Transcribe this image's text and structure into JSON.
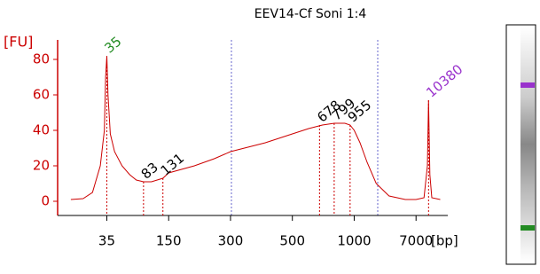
{
  "chart_data": {
    "type": "line",
    "title": "EEV14-Cf Soni 1:4",
    "ylabel": "[FU]",
    "xlabel": "[bp]",
    "log_x": true,
    "xlim": [
      11,
      19000
    ],
    "xticks": [
      35,
      150,
      300,
      500,
      1000,
      7000
    ],
    "ylim": [
      -8,
      91
    ],
    "yticks": [
      0,
      20,
      40,
      60,
      80
    ],
    "axis_color": "#cc0000",
    "series": [
      {
        "color": "#cc0000",
        "x": [
          15,
          20,
          25,
          30,
          33,
          34,
          35,
          36,
          38,
          42,
          50,
          60,
          70,
          83,
          100,
          131,
          150,
          200,
          250,
          300,
          400,
          500,
          600,
          700,
          800,
          900,
          955,
          1000,
          1200,
          1500,
          2000,
          3000,
          5000,
          7000,
          9000,
          10000,
          10380,
          10800,
          11500,
          15000
        ],
        "values": [
          1,
          1.5,
          5,
          20,
          40,
          70,
          82,
          60,
          38,
          28,
          20,
          15,
          12,
          11,
          11,
          13,
          16,
          20,
          24,
          28,
          33,
          38,
          41,
          43,
          44,
          44,
          43,
          40,
          33,
          22,
          10,
          3,
          1,
          1,
          2,
          20,
          57,
          15,
          2,
          1
        ]
      }
    ],
    "peaks": [
      {
        "size": 35,
        "fu": 82,
        "color": "#228b22"
      },
      {
        "size": 83,
        "fu": 11,
        "color": "#000000"
      },
      {
        "size": 131,
        "fu": 13,
        "color": "#000000"
      },
      {
        "size": 678,
        "fu": 43,
        "color": "#000000"
      },
      {
        "size": 799,
        "fu": 44,
        "color": "#000000"
      },
      {
        "size": 955,
        "fu": 43,
        "color": "#000000"
      },
      {
        "size": 10380,
        "fu": 57,
        "color": "#9932cc"
      }
    ]
  }
}
